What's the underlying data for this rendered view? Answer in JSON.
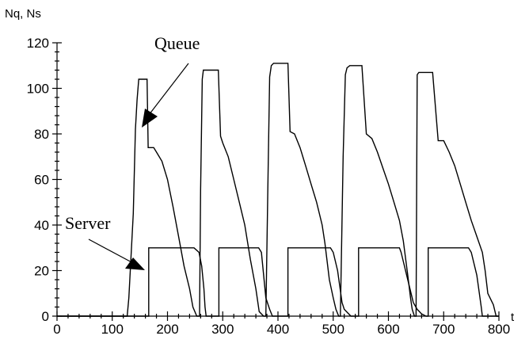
{
  "chart_data": {
    "type": "line",
    "ylabel": "Nq, Ns",
    "xlabel": "t",
    "xlim": [
      0,
      800
    ],
    "ylim": [
      0,
      120
    ],
    "x_ticks": [
      0,
      100,
      200,
      300,
      400,
      500,
      600,
      700,
      800
    ],
    "y_ticks": [
      0,
      20,
      40,
      60,
      80,
      100,
      120
    ],
    "grid": false,
    "annotations": [
      {
        "text": "Queue",
        "target": [
          147,
          82
        ]
      },
      {
        "text": "Server",
        "target": [
          166,
          20
        ]
      }
    ],
    "series": [
      {
        "x": [
          0,
          127,
          130,
          138,
          142,
          145,
          148,
          150,
          160,
          163,
          165,
          175,
          180,
          190,
          200,
          210,
          220,
          230,
          240,
          246,
          253,
          258,
          260,
          263,
          265,
          270,
          275,
          292,
          296,
          300,
          310,
          320,
          330,
          340,
          350,
          360,
          366,
          374,
          378,
          382,
          385,
          388,
          392,
          395,
          398,
          418,
          422,
          430,
          440,
          450,
          460,
          470,
          480,
          485,
          493,
          500,
          505,
          510,
          513,
          518,
          522,
          525,
          530,
          532,
          550,
          552,
          560,
          570,
          580,
          590,
          600,
          610,
          620,
          627,
          635,
          640,
          643,
          647,
          650,
          652,
          655,
          670,
          675,
          680,
          690,
          700,
          710,
          720,
          730,
          740,
          750,
          760,
          770,
          775,
          780,
          790,
          795,
          800
        ],
        "y": [
          0,
          0,
          8,
          45,
          82,
          95,
          104,
          104,
          104,
          104,
          74,
          74,
          72,
          68,
          60,
          48,
          35,
          22,
          12,
          4,
          0,
          0,
          55,
          104,
          108,
          108,
          108,
          108,
          79,
          76,
          70,
          60,
          50,
          40,
          25,
          12,
          2,
          0,
          0,
          60,
          105,
          110,
          111,
          111,
          111,
          111,
          81,
          80,
          74,
          66,
          58,
          50,
          40,
          32,
          16,
          8,
          3,
          0,
          0,
          70,
          106,
          109,
          110,
          110,
          110,
          110,
          80,
          78,
          72,
          65,
          58,
          50,
          42,
          33,
          18,
          8,
          3,
          0,
          0,
          106,
          107,
          107,
          107,
          107,
          77,
          77,
          72,
          66,
          58,
          50,
          42,
          35,
          28,
          20,
          10,
          5,
          0,
          0
        ]
      },
      {
        "x": [
          0,
          166,
          166,
          248,
          257,
          262,
          266,
          268,
          270,
          293,
          293,
          365,
          370,
          378,
          385,
          390,
          405,
          415,
          418,
          418,
          495,
          500,
          508,
          516,
          520,
          532,
          540,
          546,
          546,
          620,
          623,
          633,
          645,
          652,
          660,
          668,
          672,
          672,
          745,
          750,
          760,
          768,
          770,
          800
        ],
        "y": [
          0,
          0,
          30,
          30,
          28,
          22,
          12,
          4,
          0,
          0,
          30,
          30,
          28,
          8,
          3,
          0,
          0,
          0,
          0,
          30,
          30,
          28,
          20,
          6,
          3,
          0,
          0,
          0,
          30,
          30,
          28,
          18,
          6,
          3,
          1,
          0,
          0,
          30,
          30,
          28,
          18,
          4,
          0,
          0
        ]
      }
    ]
  }
}
